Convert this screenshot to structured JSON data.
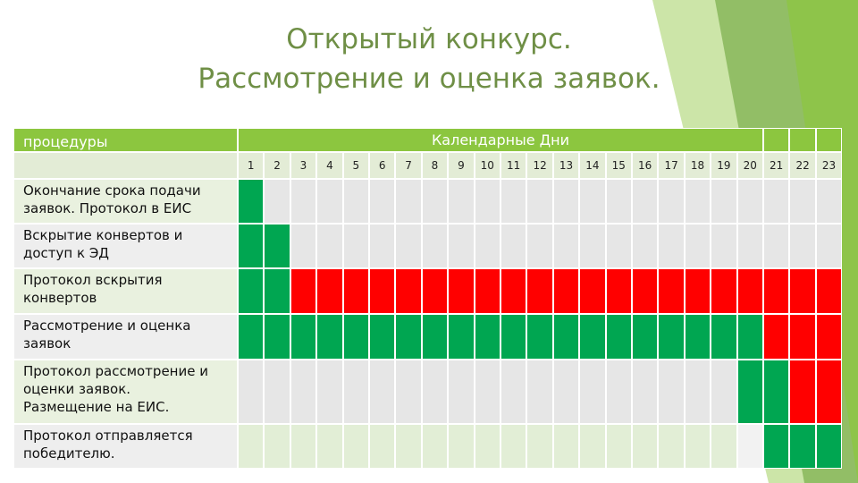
{
  "title": [
    "Открытый конкурс.",
    "Рассмотрение и оценка заявок."
  ],
  "table": {
    "header": [
      "процедуры",
      "Календарные Дни"
    ],
    "days": [
      1,
      2,
      3,
      4,
      5,
      6,
      7,
      8,
      9,
      10,
      11,
      12,
      13,
      14,
      15,
      16,
      17,
      18,
      19,
      20,
      21,
      22,
      23
    ],
    "rows": [
      {
        "label": [
          "Окончание срока подачи",
          "заявок. Протокол в ЕИС"
        ],
        "cells": [
          "#00a651",
          "#e6e6e6",
          "#e6e6e6",
          "#e6e6e6",
          "#e6e6e6",
          "#e6e6e6",
          "#e6e6e6",
          "#e6e6e6",
          "#e6e6e6",
          "#e6e6e6",
          "#e6e6e6",
          "#e6e6e6",
          "#e6e6e6",
          "#e6e6e6",
          "#e6e6e6",
          "#e6e6e6",
          "#e6e6e6",
          "#e6e6e6",
          "#e6e6e6",
          "#e6e6e6",
          "#e6e6e6",
          "#e6e6e6",
          "#e6e6e6"
        ]
      },
      {
        "label": [
          "Вскрытие конвертов и",
          "доступ к ЭД"
        ],
        "cells": [
          "#00a651",
          "#00a651",
          "#e6e6e6",
          "#e6e6e6",
          "#e6e6e6",
          "#e6e6e6",
          "#e6e6e6",
          "#e6e6e6",
          "#e6e6e6",
          "#e6e6e6",
          "#e6e6e6",
          "#e6e6e6",
          "#e6e6e6",
          "#e6e6e6",
          "#e6e6e6",
          "#e6e6e6",
          "#e6e6e6",
          "#e6e6e6",
          "#e6e6e6",
          "#e6e6e6",
          "#e6e6e6",
          "#e6e6e6",
          "#e6e6e6"
        ]
      },
      {
        "label": [
          "Протокол вскрытия",
          "конвертов"
        ],
        "cells": [
          "#00a651",
          "#00a651",
          "#ff0000",
          "#ff0000",
          "#ff0000",
          "#ff0000",
          "#ff0000",
          "#ff0000",
          "#ff0000",
          "#ff0000",
          "#ff0000",
          "#ff0000",
          "#ff0000",
          "#ff0000",
          "#ff0000",
          "#ff0000",
          "#ff0000",
          "#ff0000",
          "#ff0000",
          "#ff0000",
          "#ff0000",
          "#ff0000",
          "#ff0000"
        ]
      },
      {
        "label": [
          "Рассмотрение и оценка",
          "заявок"
        ],
        "cells": [
          "#00a651",
          "#00a651",
          "#00a651",
          "#00a651",
          "#00a651",
          "#00a651",
          "#00a651",
          "#00a651",
          "#00a651",
          "#00a651",
          "#00a651",
          "#00a651",
          "#00a651",
          "#00a651",
          "#00a651",
          "#00a651",
          "#00a651",
          "#00a651",
          "#00a651",
          "#00a651",
          "#ff0000",
          "#ff0000",
          "#ff0000"
        ]
      },
      {
        "label": [
          "Протокол рассмотрение и",
          "оценки заявок.",
          "Размещение на ЕИС."
        ],
        "cells": [
          "#e6e6e6",
          "#e6e6e6",
          "#e6e6e6",
          "#e6e6e6",
          "#e6e6e6",
          "#e6e6e6",
          "#e6e6e6",
          "#e6e6e6",
          "#e6e6e6",
          "#e6e6e6",
          "#e6e6e6",
          "#e6e6e6",
          "#e6e6e6",
          "#e6e6e6",
          "#e6e6e6",
          "#e6e6e6",
          "#e6e6e6",
          "#e6e6e6",
          "#e6e6e6",
          "#00a651",
          "#00a651",
          "#ff0000",
          "#ff0000"
        ]
      },
      {
        "label": [
          "Протокол отправляется",
          "победителю."
        ],
        "cells": [
          "#e2eed6",
          "#e2eed6",
          "#e2eed6",
          "#e2eed6",
          "#e2eed6",
          "#e2eed6",
          "#e2eed6",
          "#e2eed6",
          "#e2eed6",
          "#e2eed6",
          "#e2eed6",
          "#e2eed6",
          "#e2eed6",
          "#e2eed6",
          "#e2eed6",
          "#e2eed6",
          "#e2eed6",
          "#e2eed6",
          "#e2eed6",
          "#f2f2f2",
          "#00a651",
          "#00a651",
          "#00a651"
        ]
      }
    ]
  }
}
